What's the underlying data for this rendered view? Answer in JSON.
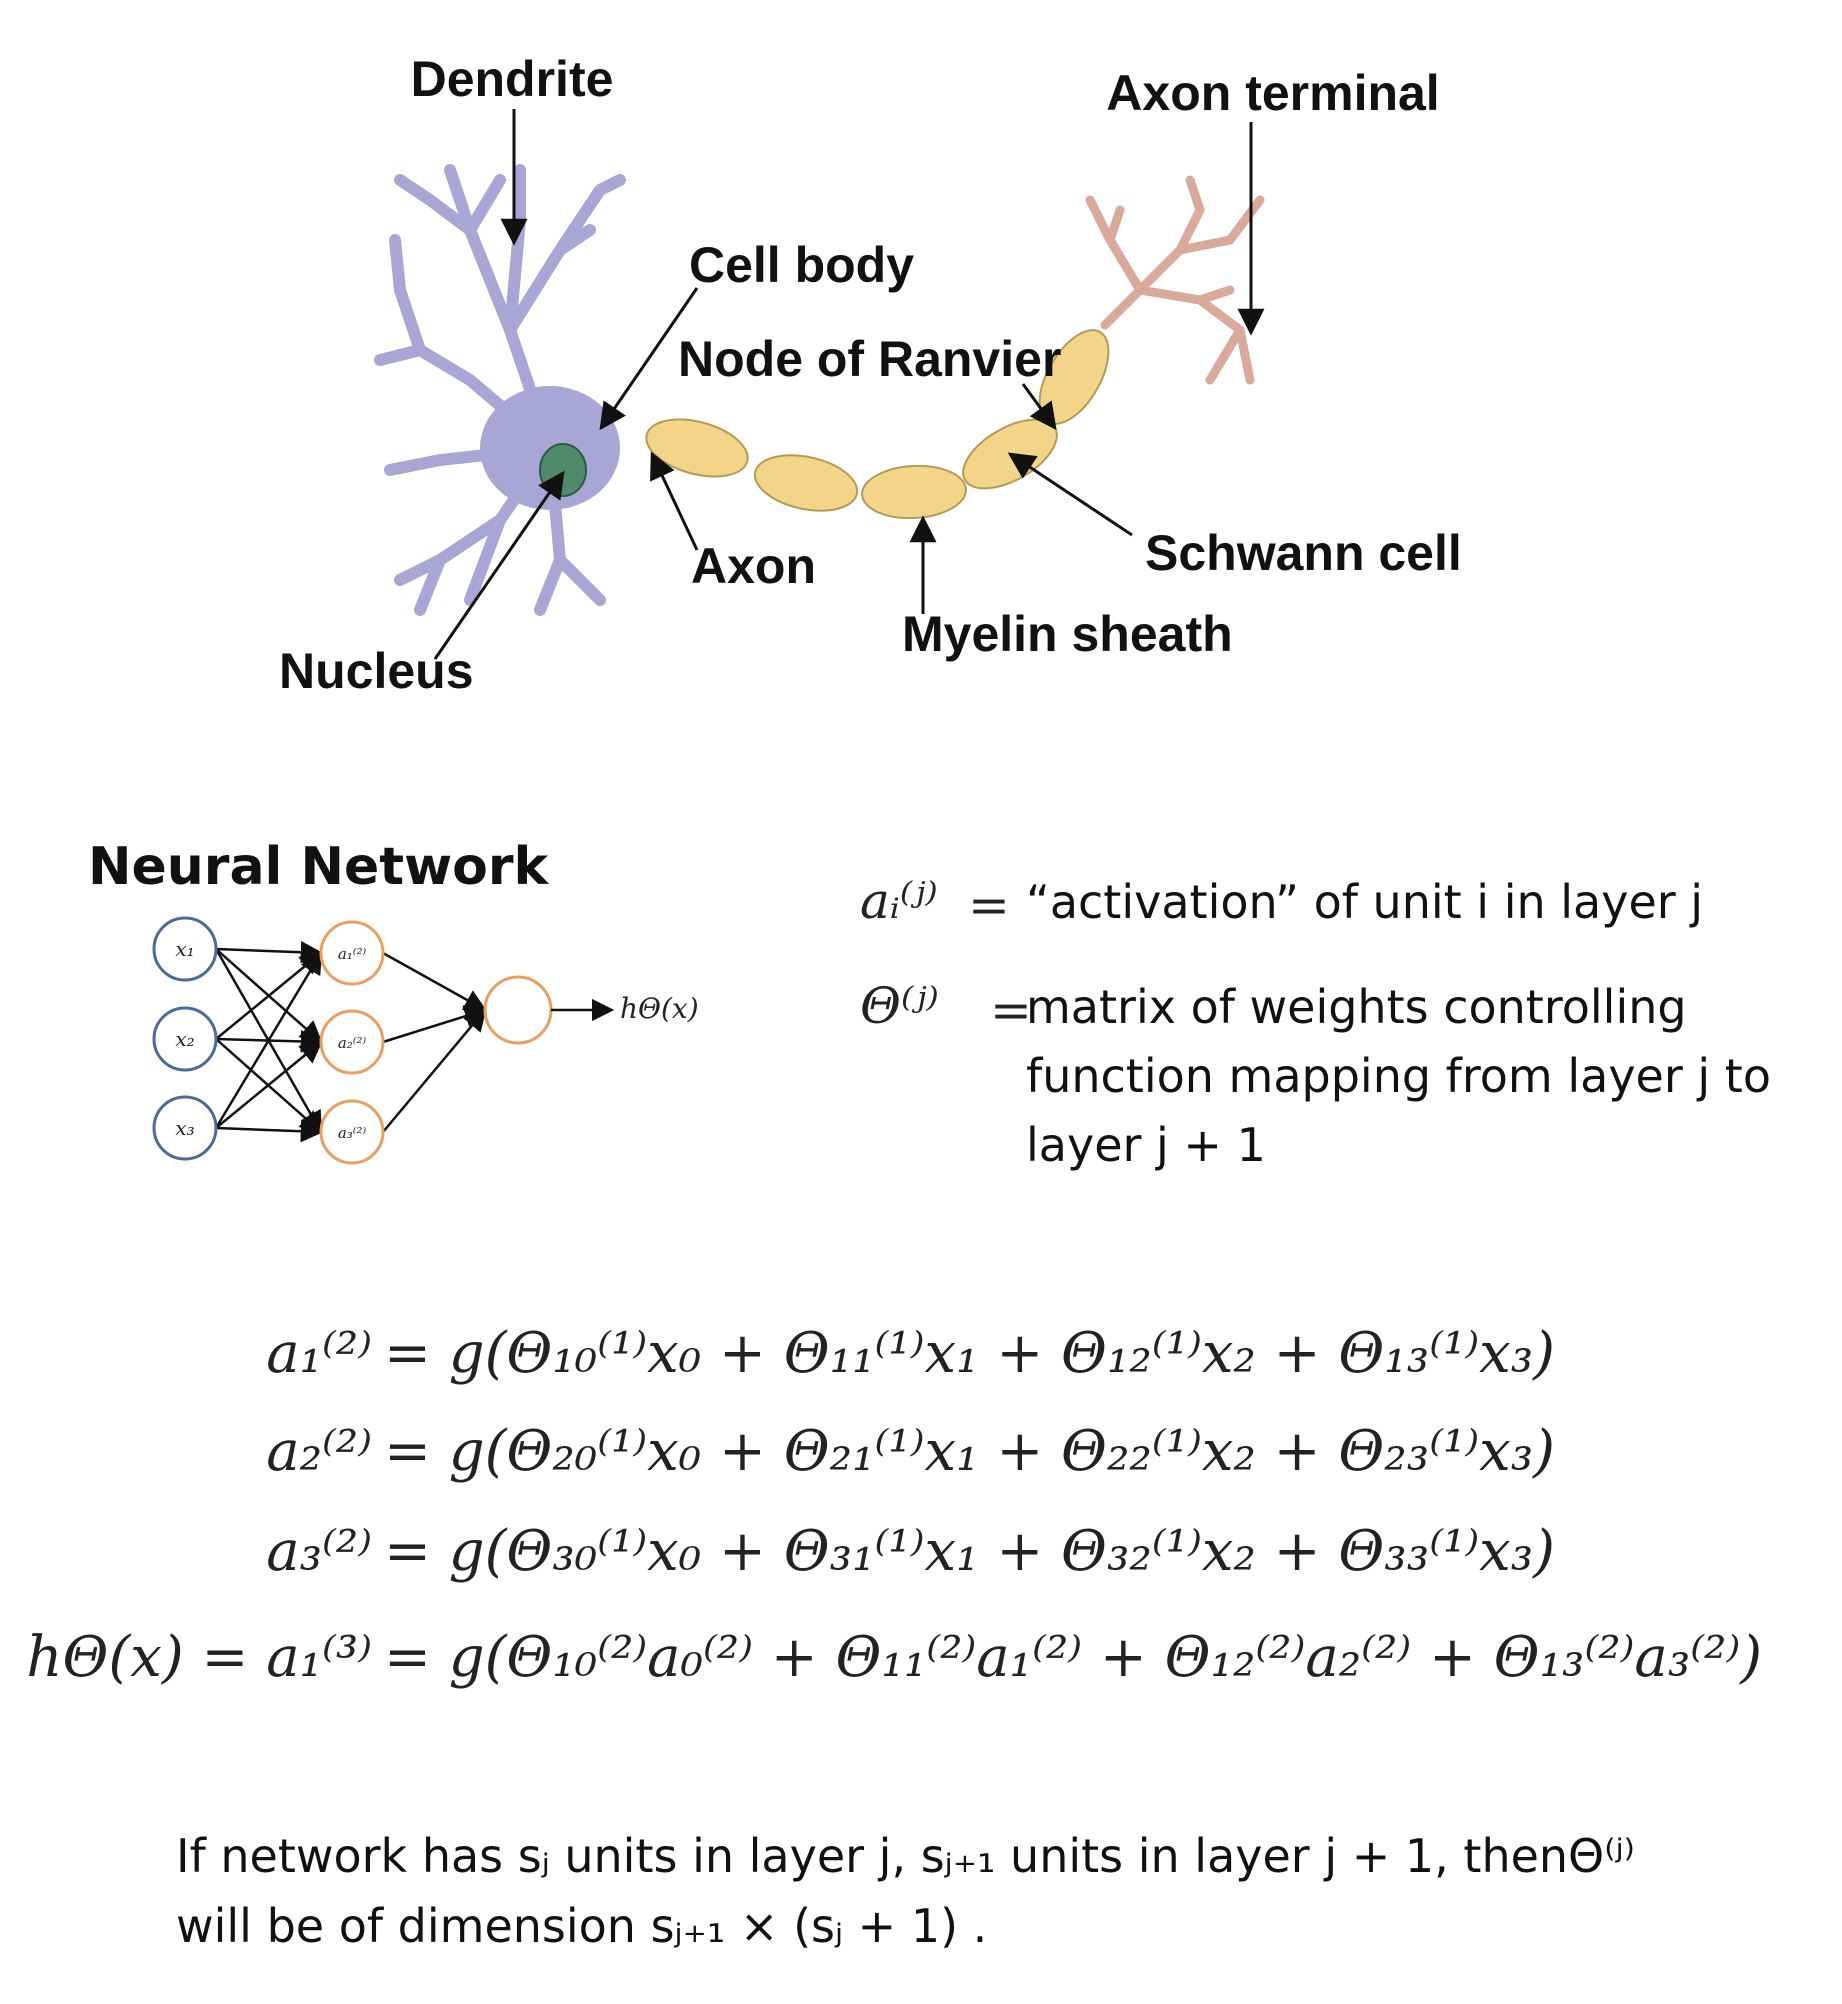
{
  "neuron": {
    "labels": {
      "dendrite": "Dendrite",
      "axon_terminal": "Axon terminal",
      "cell_body": "Cell body",
      "node_of_ranvier": "Node of Ranvier",
      "axon": "Axon",
      "schwann_cell": "Schwann cell",
      "myelin_sheath": "Myelin sheath",
      "nucleus": "Nucleus"
    }
  },
  "network": {
    "title": "Neural Network",
    "inputs": [
      "x₁",
      "x₂",
      "x₃"
    ],
    "hidden": [
      "a₁⁽²⁾",
      "a₂⁽²⁾",
      "a₃⁽²⁾"
    ],
    "output": "hΘ(x)"
  },
  "definitions": [
    {
      "symbol": "aᵢ⁽ʲ⁾",
      "equals": "=",
      "lines": [
        "“activation” of unit i in layer j"
      ]
    },
    {
      "symbol": "Θ⁽ʲ⁾",
      "equals": "=",
      "lines": [
        "matrix of weights controlling",
        "function mapping from layer j to",
        "layer j + 1"
      ]
    }
  ],
  "equations": [
    {
      "lhs": "a₁⁽²⁾",
      "rhs": "= g(Θ₁₀⁽¹⁾x₀ + Θ₁₁⁽¹⁾x₁ + Θ₁₂⁽¹⁾x₂ + Θ₁₃⁽¹⁾x₃)"
    },
    {
      "lhs": "a₂⁽²⁾",
      "rhs": "= g(Θ₂₀⁽¹⁾x₀ + Θ₂₁⁽¹⁾x₁ + Θ₂₂⁽¹⁾x₂ + Θ₂₃⁽¹⁾x₃)"
    },
    {
      "lhs": "a₃⁽²⁾",
      "rhs": "= g(Θ₃₀⁽¹⁾x₀ + Θ₃₁⁽¹⁾x₁ + Θ₃₂⁽¹⁾x₂ + Θ₃₃⁽¹⁾x₃)"
    },
    {
      "lhs": "hΘ(x) = a₁⁽³⁾",
      "rhs": "= g(Θ₁₀⁽²⁾a₀⁽²⁾ + Θ₁₁⁽²⁾a₁⁽²⁾ + Θ₁₂⁽²⁾a₂⁽²⁾ + Θ₁₃⁽²⁾a₃⁽²⁾)"
    }
  ],
  "note": {
    "lines": [
      "If network has sⱼ units in layer j, sⱼ₊₁ units in layer j + 1, thenΘ⁽ʲ⁾",
      "will be of dimension sⱼ₊₁ × (sⱼ + 1) ."
    ]
  }
}
